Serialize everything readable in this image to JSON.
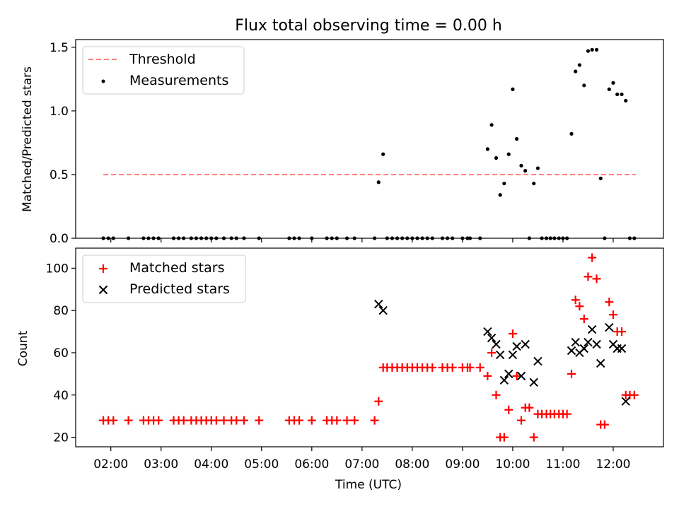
{
  "chart_data": [
    {
      "type": "scatter",
      "title": "Flux total observing time = 0.00 h",
      "ylabel": "Matched/Predicted stars",
      "xlabel": "",
      "xlim": [
        1.3,
        13.0
      ],
      "ylim": [
        0,
        1.56
      ],
      "yticks": [
        0.0,
        0.5,
        1.0,
        1.5
      ],
      "ytick_labels": [
        "0.0",
        "0.5",
        "1.0",
        "1.5"
      ],
      "legend_position": "top-left",
      "threshold": {
        "name": "Threshold",
        "value": 0.5,
        "x_start": 1.85,
        "x_end": 12.45,
        "color": "#ff7f7f"
      },
      "series": [
        {
          "name": "Measurements",
          "color": "#000000",
          "marker": "dot",
          "x": [
            1.85,
            1.95,
            2.05,
            2.35,
            2.65,
            2.75,
            2.85,
            2.95,
            3.25,
            3.35,
            3.45,
            3.6,
            3.7,
            3.8,
            3.9,
            4.0,
            4.1,
            4.25,
            4.4,
            4.5,
            4.65,
            4.95,
            5.55,
            5.65,
            5.75,
            6.0,
            6.3,
            6.4,
            6.5,
            6.7,
            6.85,
            7.25,
            7.33,
            7.42,
            7.5,
            7.6,
            7.7,
            7.8,
            7.9,
            8.0,
            8.1,
            8.2,
            8.3,
            8.4,
            8.6,
            8.7,
            8.8,
            9.0,
            9.1,
            9.15,
            9.35,
            9.5,
            9.58,
            9.67,
            9.75,
            9.83,
            9.92,
            10.0,
            10.08,
            10.17,
            10.25,
            10.33,
            10.42,
            10.5,
            10.58,
            10.67,
            10.75,
            10.83,
            10.92,
            11.0,
            11.08,
            11.17,
            11.25,
            11.33,
            11.42,
            11.5,
            11.58,
            11.67,
            11.75,
            11.83,
            11.92,
            12.0,
            12.08,
            12.17,
            12.25,
            12.33,
            12.42
          ],
          "y": [
            0,
            0,
            0,
            0,
            0,
            0,
            0,
            0,
            0,
            0,
            0,
            0,
            0,
            0,
            0,
            0,
            0,
            0,
            0,
            0,
            0,
            0,
            0,
            0,
            0,
            0,
            0,
            0,
            0,
            0,
            0,
            0,
            0.44,
            0.66,
            0,
            0,
            0,
            0,
            0,
            0,
            0,
            0,
            0,
            0,
            0,
            0,
            0,
            0,
            0,
            0,
            0,
            0.7,
            0.89,
            0.63,
            0.34,
            0.43,
            0.66,
            1.17,
            0.78,
            0.57,
            0.53,
            0,
            0.43,
            0.55,
            0,
            0,
            0,
            0,
            0,
            0,
            0,
            0.82,
            1.31,
            1.36,
            1.2,
            1.47,
            1.48,
            1.48,
            0.47,
            0,
            1.17,
            1.22,
            1.13,
            1.13,
            1.08,
            0,
            0
          ]
        }
      ]
    },
    {
      "type": "scatter",
      "title": "",
      "ylabel": "Count",
      "xlabel": "Time (UTC)",
      "xlim": [
        1.3,
        13.0
      ],
      "ylim": [
        15.5,
        109.5
      ],
      "yticks": [
        20,
        40,
        60,
        80,
        100
      ],
      "ytick_labels": [
        "20",
        "40",
        "60",
        "80",
        "100"
      ],
      "xticks": [
        2,
        3,
        4,
        5,
        6,
        7,
        8,
        9,
        10,
        11,
        12
      ],
      "xtick_labels": [
        "02:00",
        "03:00",
        "04:00",
        "05:00",
        "06:00",
        "07:00",
        "08:00",
        "09:00",
        "10:00",
        "11:00",
        "12:00"
      ],
      "legend_position": "top-left",
      "series": [
        {
          "name": "Matched stars",
          "color": "#ff0000",
          "marker": "plus",
          "x": [
            1.85,
            1.95,
            2.05,
            2.35,
            2.65,
            2.75,
            2.85,
            2.95,
            3.25,
            3.35,
            3.45,
            3.6,
            3.7,
            3.8,
            3.9,
            4.0,
            4.1,
            4.25,
            4.4,
            4.5,
            4.65,
            4.95,
            5.55,
            5.65,
            5.75,
            6.0,
            6.3,
            6.4,
            6.5,
            6.7,
            6.85,
            7.25,
            7.33,
            7.42,
            7.5,
            7.6,
            7.7,
            7.8,
            7.9,
            8.0,
            8.1,
            8.2,
            8.3,
            8.4,
            8.6,
            8.7,
            8.8,
            9.0,
            9.1,
            9.15,
            9.35,
            9.5,
            9.58,
            9.67,
            9.75,
            9.83,
            9.92,
            10.0,
            10.08,
            10.17,
            10.25,
            10.33,
            10.42,
            10.5,
            10.58,
            10.67,
            10.75,
            10.83,
            10.92,
            11.0,
            11.08,
            11.17,
            11.25,
            11.33,
            11.42,
            11.5,
            11.58,
            11.67,
            11.75,
            11.83,
            11.92,
            12.0,
            12.08,
            12.17,
            12.25,
            12.33,
            12.42
          ],
          "y": [
            28,
            28,
            28,
            28,
            28,
            28,
            28,
            28,
            28,
            28,
            28,
            28,
            28,
            28,
            28,
            28,
            28,
            28,
            28,
            28,
            28,
            28,
            28,
            28,
            28,
            28,
            28,
            28,
            28,
            28,
            28,
            28,
            37,
            53,
            53,
            53,
            53,
            53,
            53,
            53,
            53,
            53,
            53,
            53,
            53,
            53,
            53,
            53,
            53,
            53,
            53,
            49,
            60,
            40,
            20,
            20,
            33,
            69,
            49,
            28,
            34,
            34,
            20,
            31,
            31,
            31,
            31,
            31,
            31,
            31,
            31,
            50,
            85,
            82,
            76,
            96,
            105,
            95,
            26,
            26,
            84,
            78,
            70,
            70,
            40,
            40,
            40
          ]
        },
        {
          "name": "Predicted stars",
          "color": "#000000",
          "marker": "x",
          "x": [
            7.33,
            7.42,
            9.5,
            9.58,
            9.67,
            9.75,
            9.83,
            9.92,
            10.0,
            10.08,
            10.17,
            10.25,
            10.42,
            10.5,
            11.17,
            11.25,
            11.33,
            11.42,
            11.5,
            11.58,
            11.67,
            11.75,
            11.92,
            12.0,
            12.08,
            12.17,
            12.25
          ],
          "y": [
            83,
            80,
            70,
            67,
            64,
            59,
            47,
            50,
            59,
            63,
            49,
            64,
            46,
            56,
            61,
            65,
            60,
            62,
            65,
            71,
            64,
            55,
            72,
            64,
            62,
            62,
            37
          ]
        }
      ]
    }
  ]
}
